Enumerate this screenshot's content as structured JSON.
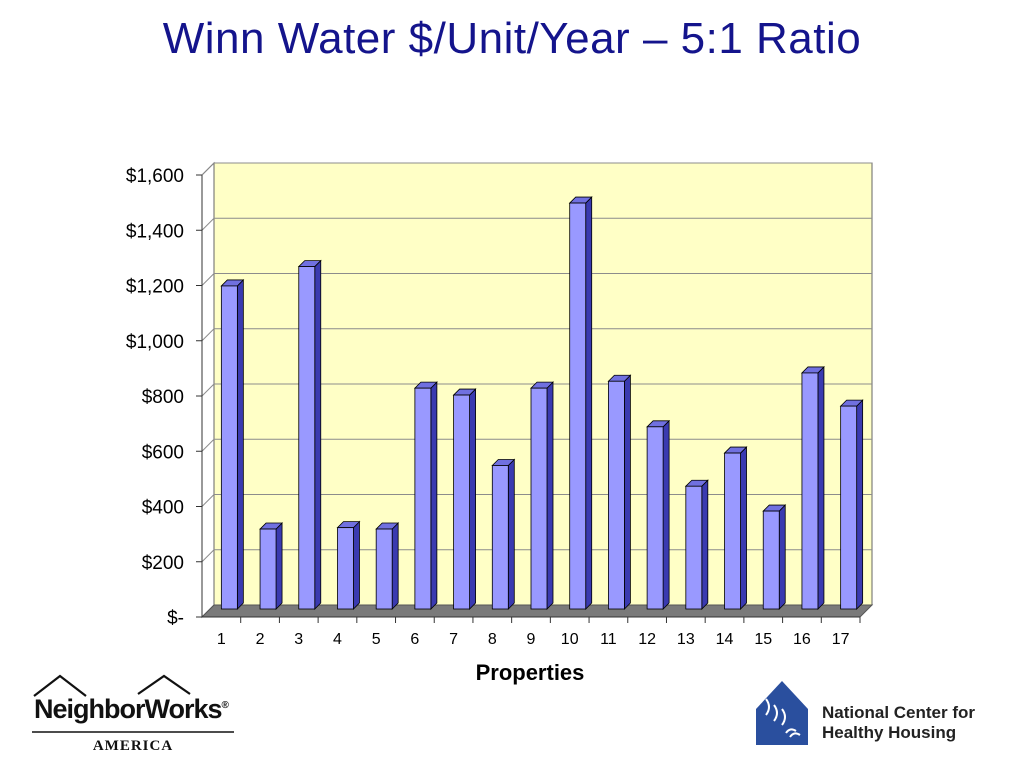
{
  "title": "Winn Water $/Unit/Year – 5:1 Ratio",
  "chart_data": {
    "type": "bar",
    "title": "",
    "xlabel": "Properties",
    "ylabel": "",
    "categories": [
      "1",
      "2",
      "3",
      "4",
      "5",
      "6",
      "7",
      "8",
      "9",
      "10",
      "11",
      "12",
      "13",
      "14",
      "15",
      "16",
      "17"
    ],
    "values": [
      1155,
      275,
      1225,
      280,
      275,
      785,
      760,
      505,
      785,
      1455,
      810,
      645,
      430,
      550,
      340,
      840,
      720
    ],
    "ylim": [
      0,
      1600
    ],
    "yticks": [
      0,
      200,
      400,
      600,
      800,
      1000,
      1200,
      1400,
      1600
    ],
    "ytick_labels": [
      "$-",
      "$200",
      "$400",
      "$600",
      "$800",
      "$1,000",
      "$1,200",
      "$1,400",
      "$1,600"
    ],
    "grid": true,
    "colors": {
      "bar": "#9999ff",
      "bar_side": "#3a3ab0",
      "bar_top": "#7070e0",
      "plot_bg": "#ffffc6",
      "floor": "#7a7a7a",
      "grid": "#8c8c8c"
    }
  },
  "logos": {
    "neighborworks": {
      "name": "NeighborWorks",
      "registered": "®",
      "sub": "AMERICA"
    },
    "nchh": {
      "line1": "National Center for",
      "line2": "Healthy Housing",
      "brand_color": "#2a4f9e"
    }
  }
}
